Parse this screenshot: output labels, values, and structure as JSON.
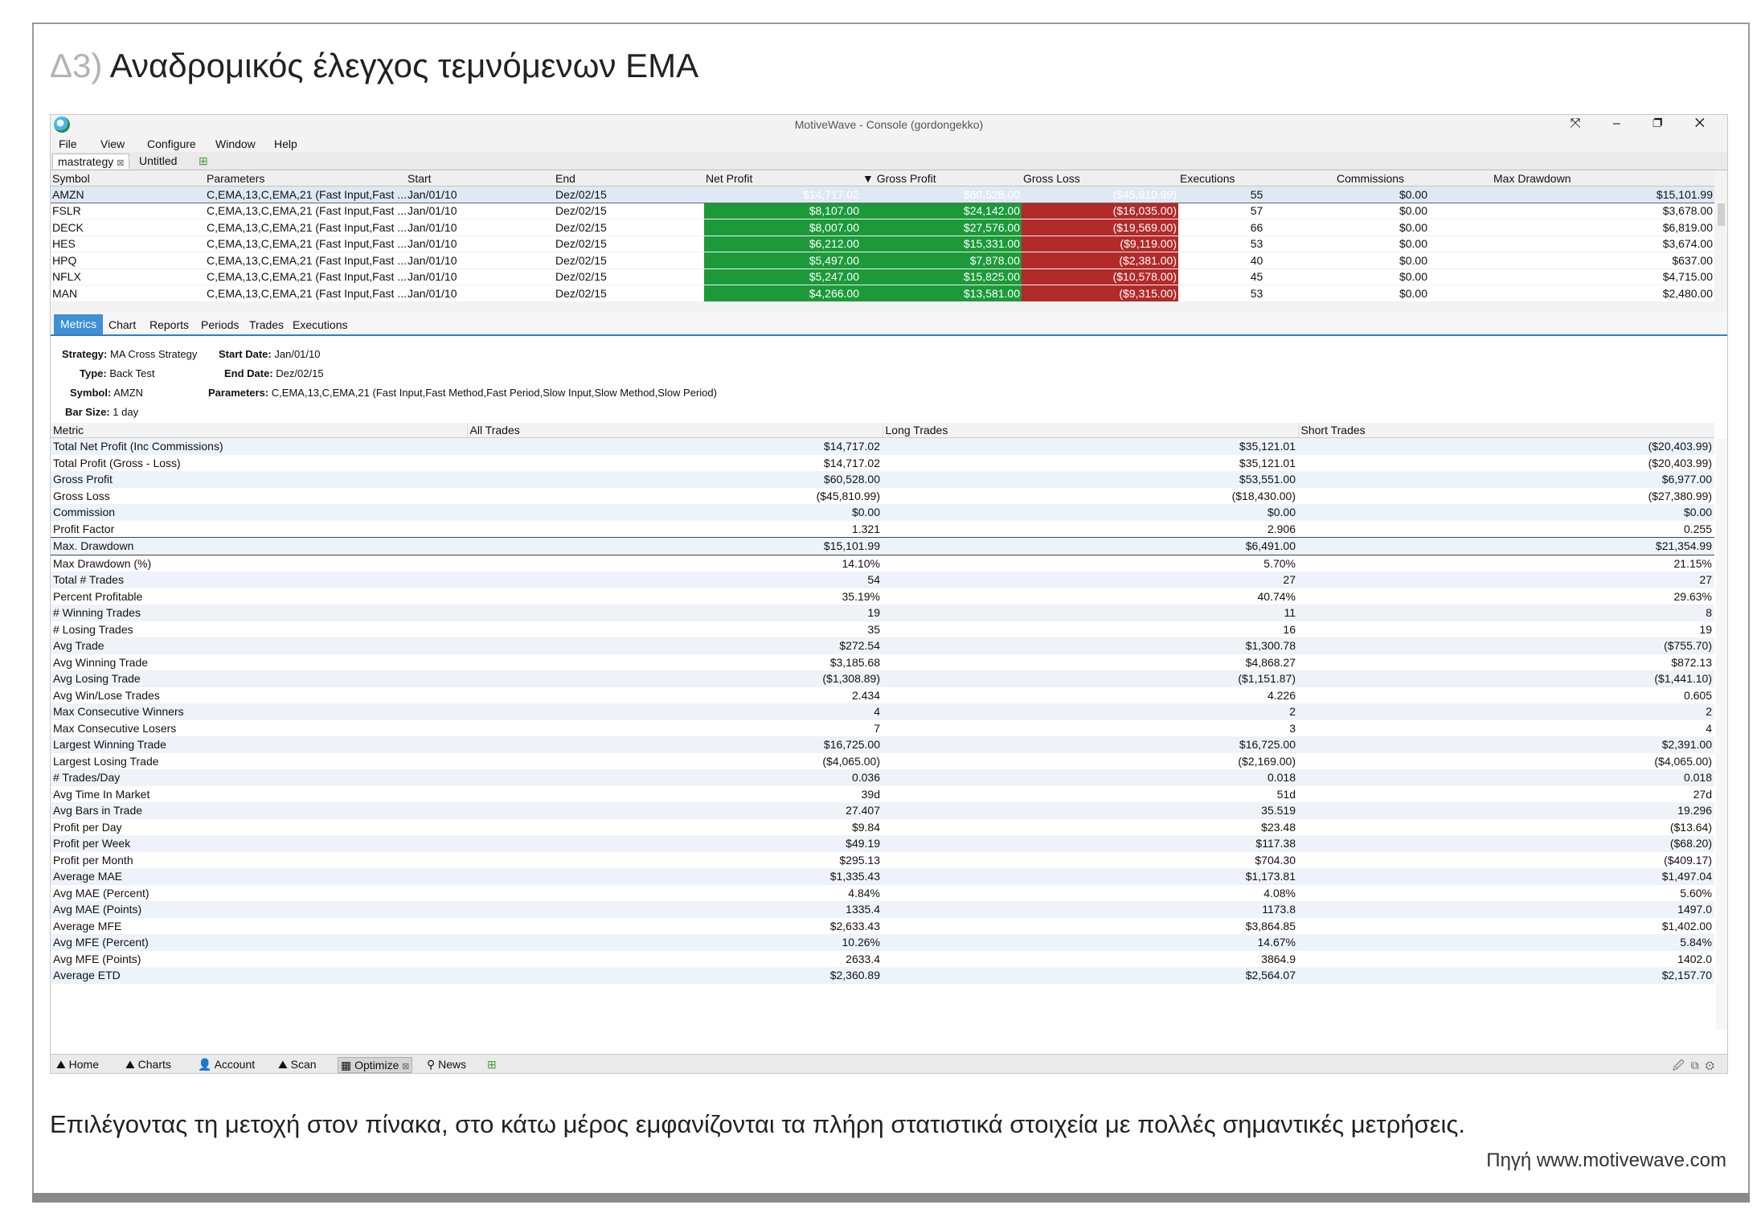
{
  "heading": {
    "number": "Δ3)",
    "title": "Αναδρομικός έλεγχος τεμνόμενων EMA"
  },
  "caption": "Επιλέγοντας τη μετοχή στον πίνακα, στο κάτω μέρος εμφανίζονται τα πλήρη στατιστικά στοιχεία με πολλές σημαντικές μετρήσεις.",
  "source": "Πηγή www.motivewave.com",
  "app": {
    "title": "MotiveWave - Console (gordongekko)",
    "window_controls": "⤧ – ❐ ✕",
    "menu": [
      "File",
      "View",
      "Configure",
      "Window",
      "Help"
    ],
    "doc_tabs": {
      "active": "mastrategy",
      "other": "Untitled"
    },
    "toolbar_icons": "🗋🖫🖫📂✎☐"
  },
  "results": {
    "columns": [
      "Symbol",
      "Parameters",
      "Start",
      "End",
      "Net Profit",
      "Gross Profit",
      "Gross Loss",
      "Executions",
      "Commissions",
      "Max Drawdown"
    ],
    "rows": [
      {
        "symbol": "AMZN",
        "params": "C,EMA,13,C,EMA,21 (Fast Input,Fast ...",
        "start": "Jan/01/10",
        "end": "Dez/02/15",
        "net": "$14,717.02",
        "gross_profit": "$60,528.00",
        "gross_loss": "($45,810.99)",
        "exec": "55",
        "comm": "$0.00",
        "dd": "$15,101.99"
      },
      {
        "symbol": "FSLR",
        "params": "C,EMA,13,C,EMA,21 (Fast Input,Fast ...",
        "start": "Jan/01/10",
        "end": "Dez/02/15",
        "net": "$8,107.00",
        "gross_profit": "$24,142.00",
        "gross_loss": "($16,035.00)",
        "exec": "57",
        "comm": "$0.00",
        "dd": "$3,678.00"
      },
      {
        "symbol": "DECK",
        "params": "C,EMA,13,C,EMA,21 (Fast Input,Fast ...",
        "start": "Jan/01/10",
        "end": "Dez/02/15",
        "net": "$8,007.00",
        "gross_profit": "$27,576.00",
        "gross_loss": "($19,569.00)",
        "exec": "66",
        "comm": "$0.00",
        "dd": "$6,819.00"
      },
      {
        "symbol": "HES",
        "params": "C,EMA,13,C,EMA,21 (Fast Input,Fast ...",
        "start": "Jan/01/10",
        "end": "Dez/02/15",
        "net": "$6,212.00",
        "gross_profit": "$15,331.00",
        "gross_loss": "($9,119.00)",
        "exec": "53",
        "comm": "$0.00",
        "dd": "$3,674.00"
      },
      {
        "symbol": "HPQ",
        "params": "C,EMA,13,C,EMA,21 (Fast Input,Fast ...",
        "start": "Jan/01/10",
        "end": "Dez/02/15",
        "net": "$5,497.00",
        "gross_profit": "$7,878.00",
        "gross_loss": "($2,381.00)",
        "exec": "40",
        "comm": "$0.00",
        "dd": "$637.00"
      },
      {
        "symbol": "NFLX",
        "params": "C,EMA,13,C,EMA,21 (Fast Input,Fast ...",
        "start": "Jan/01/10",
        "end": "Dez/02/15",
        "net": "$5,247.00",
        "gross_profit": "$15,825.00",
        "gross_loss": "($10,578.00)",
        "exec": "45",
        "comm": "$0.00",
        "dd": "$4,715.00"
      },
      {
        "symbol": "MAN",
        "params": "C,EMA,13,C,EMA,21 (Fast Input,Fast ...",
        "start": "Jan/01/10",
        "end": "Dez/02/15",
        "net": "$4,266.00",
        "gross_profit": "$13,581.00",
        "gross_loss": "($9,315.00)",
        "exec": "53",
        "comm": "$0.00",
        "dd": "$2,480.00"
      }
    ]
  },
  "subtabs": [
    "Metrics",
    "Chart",
    "Reports",
    "Periods",
    "Trades",
    "Executions"
  ],
  "info": {
    "strategy_label": "Strategy:",
    "strategy": "MA Cross Strategy",
    "type_label": "Type:",
    "type": "Back Test",
    "symbol_label": "Symbol:",
    "symbol": "AMZN",
    "barsize_label": "Bar Size:",
    "barsize": "1 day",
    "start_label": "Start Date:",
    "start": "Jan/01/10",
    "end_label": "End Date:",
    "end": "Dez/02/15",
    "params_label": "Parameters:",
    "params": "C,EMA,13,C,EMA,21 (Fast Input,Fast Method,Fast Period,Slow Input,Slow Method,Slow Period)"
  },
  "metrics": {
    "columns": [
      "Metric",
      "All Trades",
      "Long Trades",
      "Short Trades"
    ],
    "rows": [
      [
        "Total Net Profit (Inc Commissions)",
        "$14,717.02",
        "$35,121.01",
        "($20,403.99)"
      ],
      [
        "Total Profit (Gross - Loss)",
        "$14,717.02",
        "$35,121.01",
        "($20,403.99)"
      ],
      [
        "Gross Profit",
        "$60,528.00",
        "$53,551.00",
        "$6,977.00"
      ],
      [
        "Gross Loss",
        "($45,810.99)",
        "($18,430.00)",
        "($27,380.99)"
      ],
      [
        "Commission",
        "$0.00",
        "$0.00",
        "$0.00"
      ],
      [
        "Profit Factor",
        "1.321",
        "2.906",
        "0.255"
      ],
      [
        "Max. Drawdown",
        "$15,101.99",
        "$6,491.00",
        "$21,354.99"
      ],
      [
        "Max Drawdown (%)",
        "14.10%",
        "5.70%",
        "21.15%"
      ],
      [
        "Total # Trades",
        "54",
        "27",
        "27"
      ],
      [
        "Percent Profitable",
        "35.19%",
        "40.74%",
        "29.63%"
      ],
      [
        "# Winning Trades",
        "19",
        "11",
        "8"
      ],
      [
        "# Losing Trades",
        "35",
        "16",
        "19"
      ],
      [
        "Avg Trade",
        "$272.54",
        "$1,300.78",
        "($755.70)"
      ],
      [
        "Avg Winning Trade",
        "$3,185.68",
        "$4,868.27",
        "$872.13"
      ],
      [
        "Avg Losing Trade",
        "($1,308.89)",
        "($1,151.87)",
        "($1,441.10)"
      ],
      [
        "Avg Win/Lose Trades",
        "2.434",
        "4.226",
        "0.605"
      ],
      [
        "Max Consecutive Winners",
        "4",
        "2",
        "2"
      ],
      [
        "Max Consecutive Losers",
        "7",
        "3",
        "4"
      ],
      [
        "Largest Winning Trade",
        "$16,725.00",
        "$16,725.00",
        "$2,391.00"
      ],
      [
        "Largest Losing Trade",
        "($4,065.00)",
        "($2,169.00)",
        "($4,065.00)"
      ],
      [
        "# Trades/Day",
        "0.036",
        "0.018",
        "0.018"
      ],
      [
        "Avg Time In Market",
        "39d",
        "51d",
        "27d"
      ],
      [
        "Avg Bars in Trade",
        "27.407",
        "35.519",
        "19.296"
      ],
      [
        "Profit per Day",
        "$9.84",
        "$23.48",
        "($13.64)"
      ],
      [
        "Profit per Week",
        "$49.19",
        "$117.38",
        "($68.20)"
      ],
      [
        "Profit per Month",
        "$295.13",
        "$704.30",
        "($409.17)"
      ],
      [
        "Average MAE",
        "$1,335.43",
        "$1,173.81",
        "$1,497.04"
      ],
      [
        "Avg MAE (Percent)",
        "4.84%",
        "4.08%",
        "5.60%"
      ],
      [
        "Avg MAE (Points)",
        "1335.4",
        "1173.8",
        "1497.0"
      ],
      [
        "Average MFE",
        "$2,633.43",
        "$3,864.85",
        "$1,402.00"
      ],
      [
        "Avg MFE (Percent)",
        "10.26%",
        "14.67%",
        "5.84%"
      ],
      [
        "Avg MFE (Points)",
        "2633.4",
        "3864.9",
        "1402.0"
      ],
      [
        "Average ETD",
        "$2,360.89",
        "$2,564.07",
        "$2,157.70"
      ]
    ]
  },
  "statusbar": {
    "tabs": [
      {
        "icon": "⛰",
        "label": "Home"
      },
      {
        "icon": "⛰",
        "label": "Charts"
      },
      {
        "icon": "👤",
        "label": "Account"
      },
      {
        "icon": "⛰",
        "label": "Scan"
      },
      {
        "icon": "▦",
        "label": "Optimize"
      },
      {
        "icon": "⚲",
        "label": "News"
      }
    ],
    "right_icons": "🖉⧉⚙"
  },
  "colors": {
    "profit_green": "#1c9a3a",
    "loss_red": "#b22a2a",
    "accent_blue": "#3f8fd4"
  }
}
